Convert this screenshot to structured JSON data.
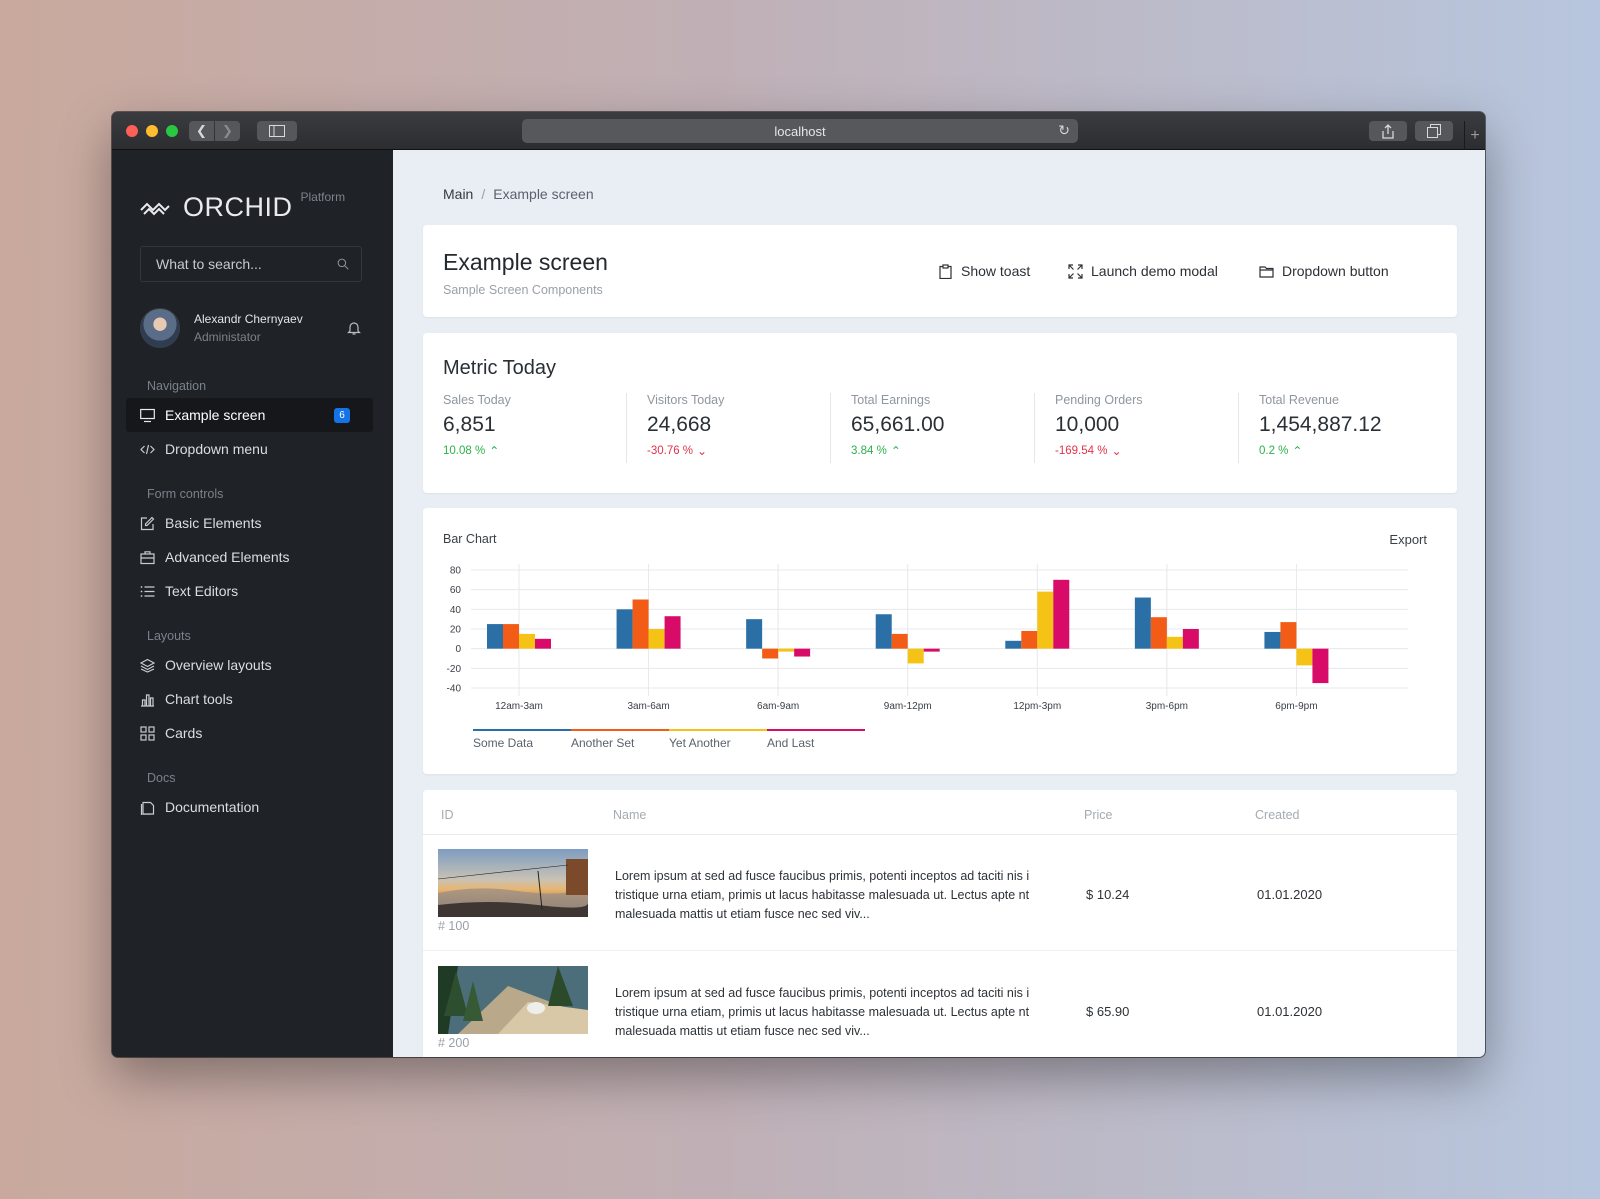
{
  "browser": {
    "url": "localhost"
  },
  "brand": {
    "name": "ORCHID",
    "subtitle": "Platform"
  },
  "search": {
    "placeholder": "What to search..."
  },
  "user": {
    "name": "Alexandr Chernyaev",
    "role": "Administator"
  },
  "nav": {
    "navigation_title": "Navigation",
    "example_screen": "Example screen",
    "example_badge": "6",
    "dropdown_menu": "Dropdown menu",
    "form_title": "Form controls",
    "basic_elements": "Basic Elements",
    "advanced_elements": "Advanced Elements",
    "text_editors": "Text Editors",
    "layouts_title": "Layouts",
    "overview_layouts": "Overview layouts",
    "chart_tools": "Chart tools",
    "cards": "Cards",
    "docs_title": "Docs",
    "documentation": "Documentation"
  },
  "breadcrumb": {
    "main": "Main",
    "separator": "/",
    "current": "Example screen"
  },
  "header": {
    "title": "Example screen",
    "subtitle": "Sample Screen Components",
    "show_toast": "Show toast",
    "launch_modal": "Launch demo modal",
    "dropdown_button": "Dropdown button"
  },
  "metrics": {
    "title": "Metric Today",
    "items": [
      {
        "label": "Sales Today",
        "value": "6,851",
        "change": "10.08 %",
        "direction": "up"
      },
      {
        "label": "Visitors Today",
        "value": "24,668",
        "change": "-30.76 %",
        "direction": "down"
      },
      {
        "label": "Total Earnings",
        "value": "65,661.00",
        "change": "3.84 %",
        "direction": "up"
      },
      {
        "label": "Pending Orders",
        "value": "10,000",
        "change": "-169.54 %",
        "direction": "down"
      },
      {
        "label": "Total Revenue",
        "value": "1,454,887.12",
        "change": "0.2 %",
        "direction": "up"
      }
    ]
  },
  "chart": {
    "title": "Bar Chart",
    "export": "Export"
  },
  "chart_data": {
    "type": "bar",
    "title": "Bar Chart",
    "categories": [
      "12am-3am",
      "3am-6am",
      "6am-9am",
      "9am-12pm",
      "12pm-3pm",
      "3pm-6pm",
      "6pm-9pm"
    ],
    "series": [
      {
        "name": "Some Data",
        "color": "#2a6fa5",
        "values": [
          25,
          40,
          30,
          35,
          8,
          52,
          17
        ]
      },
      {
        "name": "Another Set",
        "color": "#f25c16",
        "values": [
          25,
          50,
          -10,
          15,
          18,
          32,
          27
        ]
      },
      {
        "name": "Yet Another",
        "color": "#f5c315",
        "values": [
          15,
          20,
          -3,
          -15,
          58,
          12,
          -17
        ]
      },
      {
        "name": "And Last",
        "color": "#d80c68",
        "values": [
          10,
          33,
          -8,
          -3,
          70,
          20,
          -35
        ]
      }
    ],
    "ylim": [
      -40,
      80
    ],
    "yticks": [
      80,
      60,
      40,
      20,
      0,
      -20,
      -40
    ],
    "grid": true,
    "legend": "bottom-left"
  },
  "table": {
    "headers": {
      "id": "ID",
      "name": "Name",
      "price": "Price",
      "created": "Created"
    },
    "rows": [
      {
        "id": "# 100",
        "name": "Lorem ipsum at sed ad fusce faucibus primis, potenti inceptos ad taciti nis i tristique urna etiam, primis ut lacus habitasse malesuada ut. Lectus apte nt malesuada mattis ut etiam fusce nec sed viv...",
        "price": "$ 10.24",
        "created": "01.01.2020"
      },
      {
        "id": "# 200",
        "name": "Lorem ipsum at sed ad fusce faucibus primis, potenti inceptos ad taciti nis i tristique urna etiam, primis ut lacus habitasse malesuada ut. Lectus apte nt malesuada mattis ut etiam fusce nec sed viv...",
        "price": "$ 65.90",
        "created": "01.01.2020"
      }
    ]
  }
}
